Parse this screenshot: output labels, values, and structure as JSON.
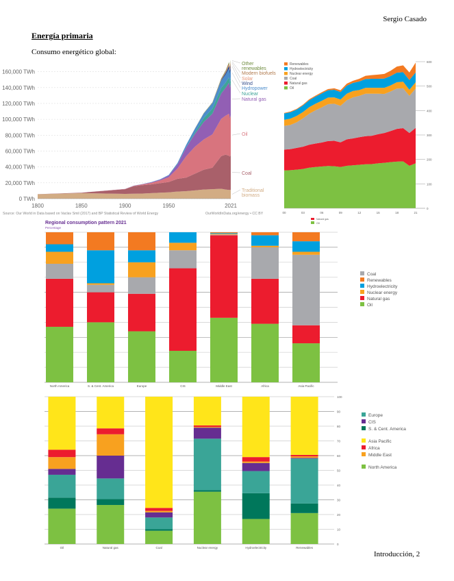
{
  "header": {
    "author": "Sergio Casado"
  },
  "section": {
    "heading": "Energía primaria",
    "intro": "Consumo energético global:"
  },
  "footer": {
    "page_label": "Introducción, 2"
  },
  "chart_data": [
    {
      "id": "global-primary-energy",
      "type": "area",
      "title": "",
      "ylabel": "TWh",
      "x": [
        1800,
        1850,
        1900,
        1910,
        1920,
        1930,
        1940,
        1950,
        1960,
        1970,
        1980,
        1990,
        2000,
        2010,
        2015,
        2019,
        2020,
        2021
      ],
      "x_ticks": [
        "1800",
        "1850",
        "1900",
        "1950",
        "2021"
      ],
      "y_ticks": [
        "0 TWh",
        "20,000 TWh",
        "40,000 TWh",
        "60,000 TWh",
        "80,000 TWh",
        "100,000 TWh",
        "120,000 TWh",
        "140,000 TWh",
        "160,000 TWh"
      ],
      "ylim": [
        0,
        170000
      ],
      "series": [
        {
          "name": "Traditional biomass",
          "color": "#d2ac84",
          "values": [
            5600,
            7000,
            6000,
            6300,
            6500,
            7000,
            7500,
            8000,
            9000,
            9500,
            10500,
            11500,
            12000,
            12500,
            11500,
            11000,
            11000,
            11100
          ]
        },
        {
          "name": "Coal",
          "color": "#a9606a",
          "values": [
            100,
            600,
            6000,
            9500,
            10500,
            11000,
            12000,
            13000,
            16000,
            17000,
            21000,
            25000,
            27000,
            41000,
            44000,
            43000,
            42000,
            44000
          ]
        },
        {
          "name": "Oil",
          "color": "#d8747e",
          "values": [
            0,
            0,
            200,
            400,
            1000,
            2000,
            3500,
            6000,
            13000,
            27000,
            34000,
            38000,
            42000,
            47000,
            49000,
            53000,
            48000,
            50000
          ]
        },
        {
          "name": "Natural gas",
          "color": "#925fb4",
          "values": [
            0,
            0,
            100,
            200,
            300,
            600,
            900,
            2000,
            5000,
            11000,
            16000,
            22000,
            26000,
            32000,
            35000,
            39000,
            38000,
            41000
          ]
        },
        {
          "name": "Nuclear",
          "color": "#3fa398",
          "values": [
            0,
            0,
            0,
            0,
            0,
            0,
            0,
            0,
            0,
            200,
            2000,
            5000,
            6500,
            7000,
            6500,
            7000,
            6800,
            7000
          ]
        },
        {
          "name": "Hydropower",
          "color": "#4c8dcc",
          "values": [
            0,
            0,
            50,
            100,
            150,
            300,
            500,
            900,
            1800,
            3100,
            4700,
            5700,
            7000,
            9000,
            10000,
            11000,
            11000,
            11200
          ]
        },
        {
          "name": "Wind",
          "color": "#334d8a",
          "values": [
            0,
            0,
            0,
            0,
            0,
            0,
            0,
            0,
            0,
            0,
            0,
            10,
            90,
            900,
            2200,
            3500,
            4000,
            4800
          ]
        },
        {
          "name": "Solar",
          "color": "#e69575",
          "values": [
            0,
            0,
            0,
            0,
            0,
            0,
            0,
            0,
            0,
            0,
            0,
            0,
            2,
            90,
            700,
            2000,
            2400,
            2900
          ]
        },
        {
          "name": "Modern biofuels",
          "color": "#b17a4e",
          "values": [
            0,
            0,
            0,
            0,
            0,
            0,
            0,
            0,
            0,
            0,
            100,
            200,
            300,
            900,
            1200,
            1300,
            1200,
            1300
          ]
        },
        {
          "name": "Other renewables",
          "color": "#6e8b3d",
          "values": [
            0,
            0,
            0,
            0,
            0,
            0,
            0,
            0,
            50,
            100,
            200,
            300,
            500,
            800,
            1000,
            1100,
            1200,
            1300
          ]
        }
      ],
      "legend": "right-inline",
      "source": "Source: Our World in Data based on Vaclav Smil (2017) and BP Statistical Review of World Energy",
      "credit": "OurWorldInData.org/energy • CC BY"
    },
    {
      "id": "world-consumption-bp",
      "type": "area",
      "x": [
        2000,
        2001,
        2002,
        2003,
        2004,
        2005,
        2006,
        2007,
        2008,
        2009,
        2010,
        2011,
        2012,
        2013,
        2014,
        2015,
        2016,
        2017,
        2018,
        2019,
        2020,
        2021
      ],
      "x_ticks": [
        "00",
        "03",
        "06",
        "09",
        "12",
        "15",
        "18",
        "21"
      ],
      "y_ticks": [
        "0",
        "100",
        "200",
        "300",
        "400",
        "500",
        "600"
      ],
      "ylim": [
        0,
        600
      ],
      "series": [
        {
          "name": "Oil",
          "color": "#7dc142",
          "values": [
            155,
            156,
            158,
            161,
            166,
            169,
            171,
            173,
            172,
            169,
            174,
            176,
            178,
            180,
            181,
            184,
            186,
            189,
            191,
            192,
            174,
            184
          ]
        },
        {
          "name": "Natural gas",
          "color": "#ec1c2e",
          "values": [
            85,
            86,
            89,
            91,
            94,
            96,
            98,
            102,
            104,
            101,
            108,
            110,
            113,
            115,
            116,
            119,
            122,
            127,
            134,
            136,
            134,
            145
          ]
        },
        {
          "name": "Coal",
          "color": "#a8a9ad",
          "values": [
            97,
            99,
            105,
            116,
            127,
            136,
            144,
            151,
            152,
            149,
            160,
            168,
            169,
            174,
            172,
            166,
            160,
            162,
            165,
            163,
            152,
            161
          ]
        },
        {
          "name": "Nuclear energy",
          "color": "#f8a11f",
          "values": [
            25,
            26,
            26,
            26,
            27,
            27,
            27,
            27,
            26,
            26,
            27,
            26,
            24,
            24,
            24,
            24,
            25,
            25,
            26,
            27,
            25,
            26
          ]
        },
        {
          "name": "Hydroelectricity",
          "color": "#00a0df",
          "values": [
            26,
            26,
            26,
            27,
            28,
            29,
            30,
            30,
            31,
            31,
            33,
            33,
            35,
            36,
            37,
            37,
            38,
            38,
            39,
            39,
            40,
            40
          ]
        },
        {
          "name": "Renewables",
          "color": "#f37a21",
          "values": [
            2,
            3,
            3,
            3,
            4,
            4,
            5,
            5,
            6,
            7,
            8,
            9,
            11,
            13,
            15,
            17,
            19,
            22,
            25,
            28,
            31,
            40
          ]
        }
      ],
      "legend": "top-left"
    },
    {
      "id": "regional-consumption-pattern",
      "type": "bar",
      "stacked": true,
      "title": "Regional consumption pattern 2021",
      "subtitle": "Percentage",
      "categories": [
        "North America",
        "S. & Cent. America",
        "Europe",
        "CIS",
        "Middle East",
        "Africa",
        "Asia Pacific"
      ],
      "ylim": [
        0,
        100
      ],
      "series": [
        {
          "name": "Oil",
          "color": "#7dc142",
          "values": [
            37,
            40,
            34,
            21,
            43,
            39,
            26
          ]
        },
        {
          "name": "Natural gas",
          "color": "#ec1c2e",
          "values": [
            32,
            20,
            25,
            55,
            55,
            30,
            12
          ]
        },
        {
          "name": "Coal",
          "color": "#a8a9ad",
          "values": [
            10,
            5,
            11,
            12,
            0.5,
            21,
            47
          ]
        },
        {
          "name": "Nuclear energy",
          "color": "#f8a11f",
          "values": [
            8,
            1,
            10,
            5,
            0.5,
            1,
            2
          ]
        },
        {
          "name": "Hydroelectricity",
          "color": "#00a0df",
          "values": [
            5,
            22,
            8,
            7,
            0.5,
            7,
            7
          ]
        },
        {
          "name": "Renewables",
          "color": "#f37a21",
          "values": [
            8,
            12,
            12,
            0,
            0.5,
            2,
            6
          ]
        }
      ],
      "legend_order": [
        "Coal",
        "Renewables",
        "Hydroelectricity",
        "Nuclear energy",
        "Natural gas",
        "Oil"
      ],
      "legend": "right"
    },
    {
      "id": "consumption-by-fuel-region",
      "type": "bar",
      "stacked": true,
      "categories": [
        "Oil",
        "Natural gas",
        "Coal",
        "Nuclear energy",
        "Hydroelectricity",
        "Renewables"
      ],
      "y_ticks": [
        "0",
        "10",
        "20",
        "30",
        "40",
        "50",
        "60",
        "70",
        "80",
        "90",
        "100"
      ],
      "ylim": [
        0,
        100
      ],
      "series": [
        {
          "name": "North America",
          "color": "#7dc142",
          "values": [
            24,
            26.5,
            9,
            35.5,
            17,
            21
          ]
        },
        {
          "name": "S. & Cent. America",
          "color": "#00775b",
          "values": [
            7.5,
            4,
            1,
            1,
            17.5,
            6.5
          ]
        },
        {
          "name": "Europe",
          "color": "#3aa597",
          "values": [
            15.5,
            14,
            8,
            35,
            15,
            30.5
          ]
        },
        {
          "name": "CIS",
          "color": "#662d91",
          "values": [
            4,
            15.5,
            3.5,
            7.5,
            5.5,
            0.5
          ]
        },
        {
          "name": "Middle East",
          "color": "#f8a11f",
          "values": [
            8,
            14.5,
            1,
            0.5,
            1,
            1
          ]
        },
        {
          "name": "Africa",
          "color": "#ec1c2e",
          "values": [
            5,
            4,
            2,
            1,
            3,
            1
          ]
        },
        {
          "name": "Asia Pacific",
          "color": "#ffe51a",
          "values": [
            36,
            21.5,
            75.5,
            19.5,
            41,
            39.5
          ]
        }
      ],
      "legend_groups": [
        [
          "Europe",
          "CIS",
          "S. & Cent. America"
        ],
        [
          "Asia Pacific",
          "Africa",
          "Middle East"
        ],
        [
          "North America"
        ]
      ],
      "legend": "right"
    }
  ]
}
